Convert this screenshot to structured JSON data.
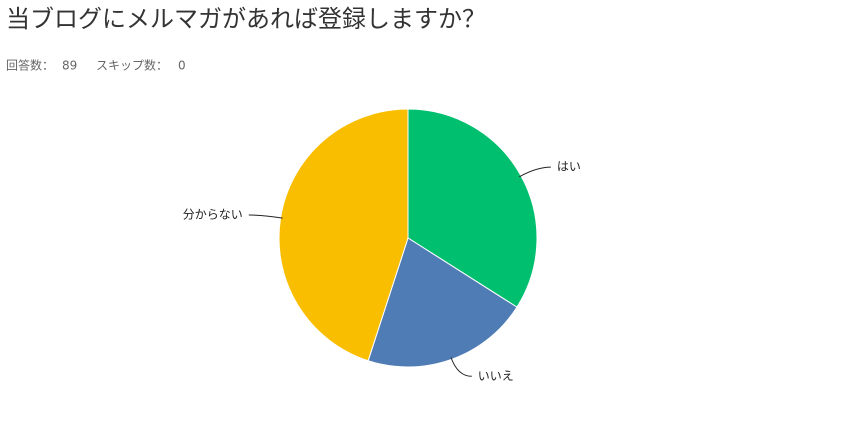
{
  "chart_data": {
    "type": "pie",
    "title": "当ブログにメルマガがあれば登録しますか？",
    "responses": {
      "label": "回答数：",
      "value": 89
    },
    "skips": {
      "label": "スキップ数：",
      "value": 0
    },
    "categories": [
      "はい",
      "いいえ",
      "分からない"
    ],
    "values": [
      34,
      21,
      45
    ],
    "colors": [
      "#00bf6f",
      "#507cb6",
      "#f9be00"
    ]
  }
}
